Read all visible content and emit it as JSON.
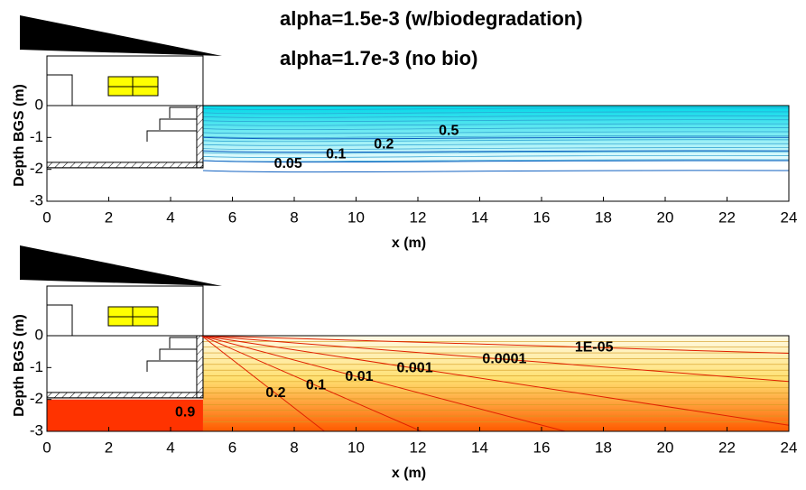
{
  "chart_data": [
    {
      "type": "contour",
      "annotations": [
        "alpha=1.5e-3 (w/biodegradation)",
        "alpha=1.7e-3 (no bio)"
      ],
      "xlabel": "x (m)",
      "ylabel": "Depth BGS (m)",
      "xlim": [
        0,
        24
      ],
      "ylim": [
        -3,
        0
      ],
      "xticks": [
        0,
        2,
        4,
        6,
        8,
        10,
        12,
        14,
        16,
        18,
        20,
        22,
        24
      ],
      "yticks": [
        0,
        -1,
        -2,
        -3
      ],
      "color": "#00d8e8",
      "levels": [
        0.5,
        0.2,
        0.1,
        0.05
      ]
    },
    {
      "type": "contour",
      "xlabel": "x (m)",
      "ylabel": "Depth BGS (m)",
      "xlim": [
        0,
        24
      ],
      "ylim": [
        -3,
        0
      ],
      "xticks": [
        0,
        2,
        4,
        6,
        8,
        10,
        12,
        14,
        16,
        18,
        20,
        22,
        24
      ],
      "yticks": [
        0,
        -1,
        -2,
        -3
      ],
      "color": "#ff3300",
      "levels": [
        0.9,
        0.2,
        0.1,
        0.01,
        0.001,
        0.0001,
        {
          "value": 1e-05,
          "label": "1E-05"
        }
      ]
    }
  ]
}
